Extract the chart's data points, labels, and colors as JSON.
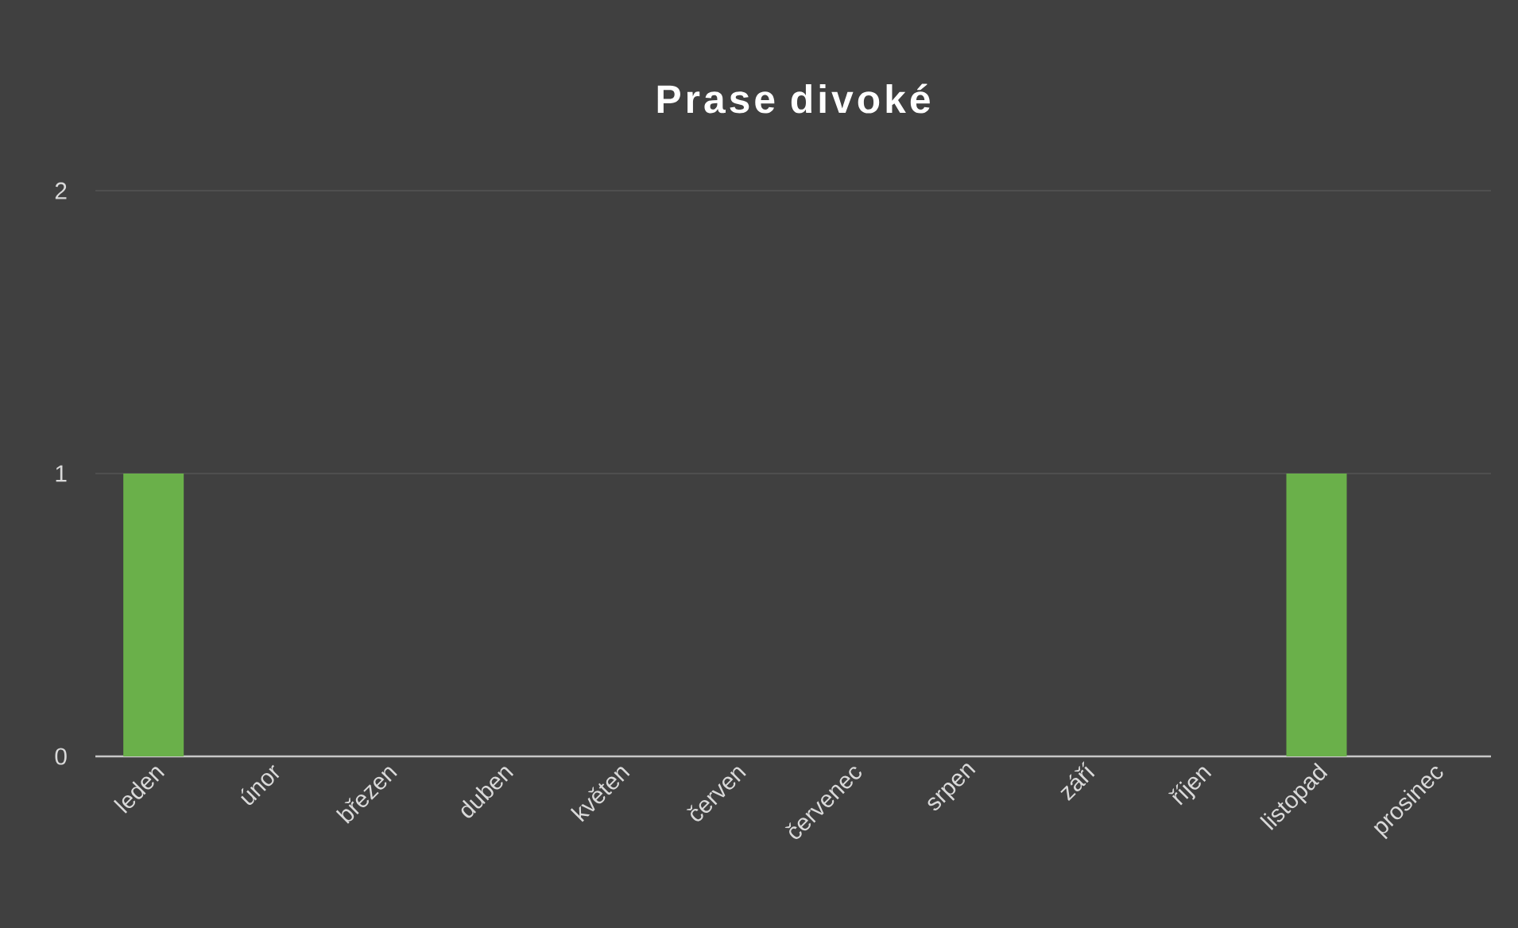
{
  "chart_data": {
    "type": "bar",
    "title": "Prase divoké",
    "categories": [
      "leden",
      "únor",
      "březen",
      "duben",
      "květen",
      "červen",
      "červenec",
      "srpen",
      "září",
      "říjen",
      "listopad",
      "prosinec"
    ],
    "values": [
      1,
      0,
      0,
      0,
      0,
      0,
      0,
      0,
      0,
      0,
      1,
      0
    ],
    "color": "#6ab04a",
    "ylim": [
      0,
      2
    ],
    "yticks": [
      0,
      1,
      2
    ],
    "grid": "y"
  }
}
